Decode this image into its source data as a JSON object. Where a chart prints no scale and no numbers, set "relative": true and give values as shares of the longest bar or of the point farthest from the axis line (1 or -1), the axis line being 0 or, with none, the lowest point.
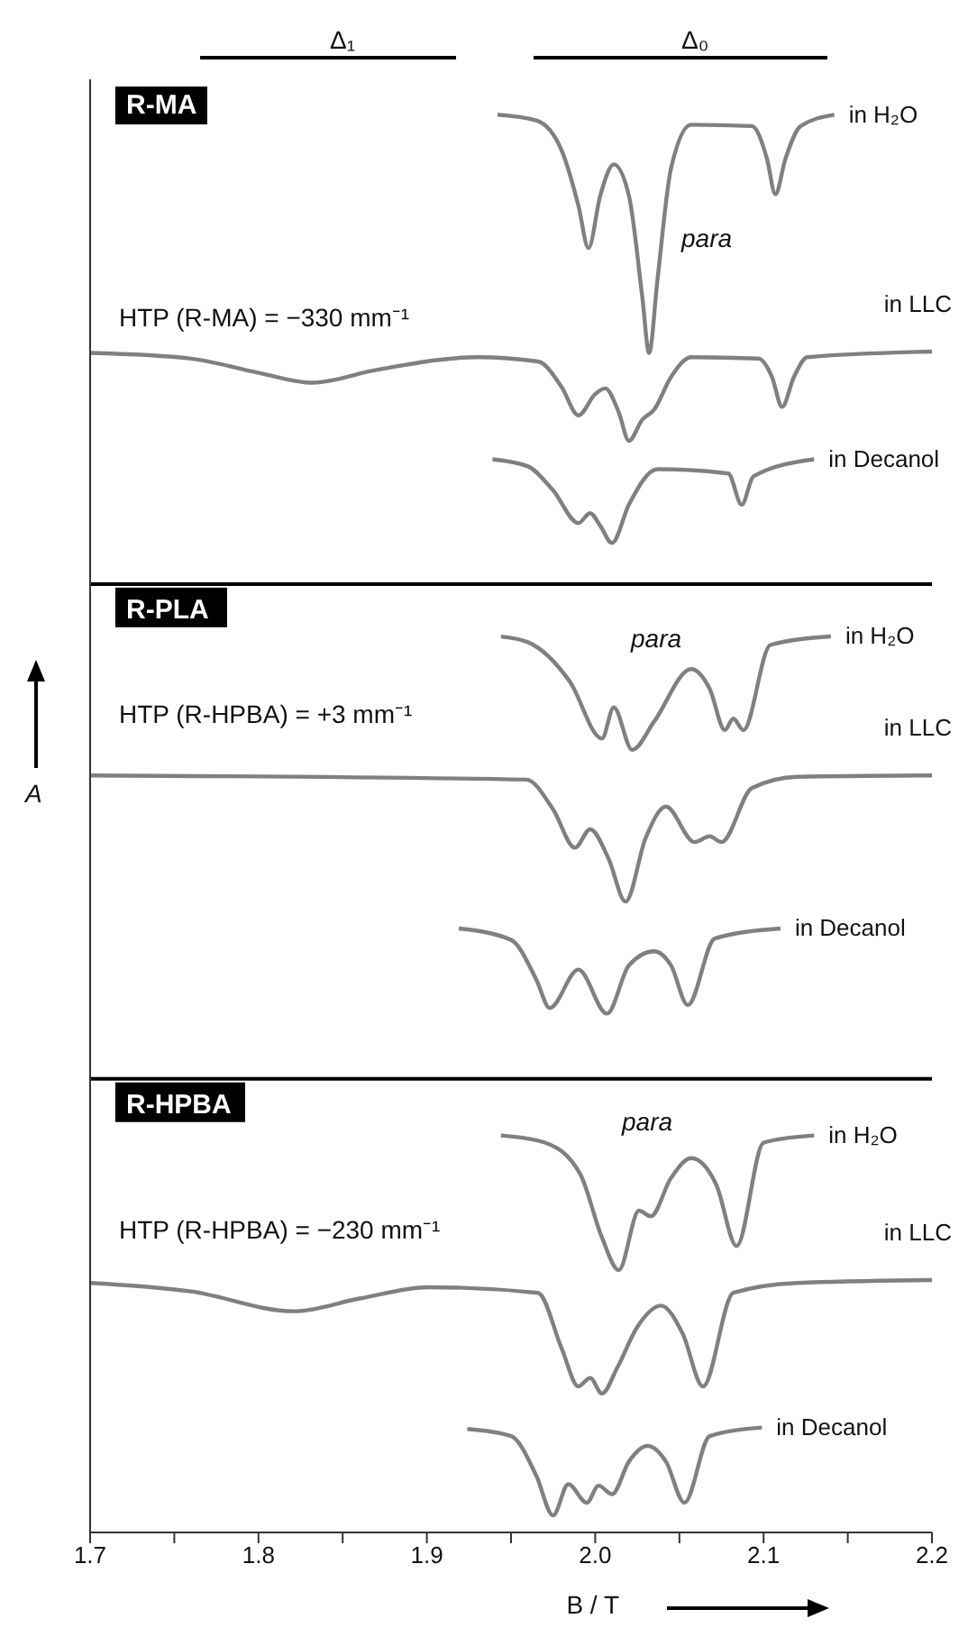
{
  "chart_data": {
    "type": "line",
    "xlabel": "B / T",
    "ylabel": "A",
    "relative": true,
    "marker": "none",
    "xlim": [
      1.7,
      2.2
    ],
    "xticks": [
      1.7,
      {
        "value": 1.75,
        "label": null
      },
      1.8,
      {
        "value": 1.85,
        "label": null
      },
      1.9,
      {
        "value": 1.95,
        "label": null
      },
      {
        "value": 2.0,
        "label": "2.0"
      },
      {
        "value": 2.05,
        "label": null
      },
      2.1,
      {
        "value": 2.15,
        "label": null
      },
      2.2
    ],
    "annotations": [
      "Δ₁",
      "Δ₀",
      "R-MA",
      "para",
      "HTP (R-MA) = −330 mm⁻¹",
      "para",
      "HTP (R-HPBA) = +3 mm⁻¹",
      "para",
      "HTP (R-HPBA) = −230 mm⁻¹"
    ],
    "ref_lines": [
      {
        "axis": "y",
        "value": 0.669,
        "label": "R-PLA",
        "color": "#000000"
      },
      {
        "axis": "y",
        "value": 0.32,
        "label": "R-HPBA",
        "color": "#000000"
      }
    ],
    "series": [
      {
        "name": "in H₂O",
        "color": "#808080",
        "x": [
          1.942,
          1.965,
          1.98,
          1.99,
          1.996,
          2.003,
          2.011,
          2.02,
          2.028,
          2.032,
          2.037,
          2.045,
          2.057,
          2.093,
          2.102,
          2.107,
          2.113,
          2.122,
          2.142
        ],
        "values": [
          1,
          0.996,
          0.975,
          0.936,
          0.906,
          0.943,
          0.965,
          0.943,
          0.871,
          0.832,
          0.884,
          0.962,
          0.993,
          0.992,
          0.969,
          0.944,
          0.969,
          0.992,
          1
        ]
      },
      {
        "name": "in LLC",
        "color": "#808080",
        "x": [
          1.7,
          1.76,
          1.8,
          1.832,
          1.87,
          1.93,
          1.966,
          1.98,
          1.99,
          2.0,
          2.006,
          2.014,
          2.02,
          2.028,
          2.035,
          2.045,
          2.057,
          2.097,
          2.105,
          2.111,
          2.118,
          2.126,
          2.2
        ],
        "values": [
          0.832,
          0.828,
          0.818,
          0.811,
          0.82,
          0.829,
          0.826,
          0.808,
          0.788,
          0.803,
          0.807,
          0.79,
          0.77,
          0.785,
          0.792,
          0.815,
          0.829,
          0.828,
          0.815,
          0.794,
          0.815,
          0.829,
          0.833
        ]
      },
      {
        "name": "in Decanol",
        "color": "#808080",
        "x": [
          1.939,
          1.96,
          1.975,
          1.99,
          1.997,
          2.003,
          2.01,
          2.02,
          2.037,
          2.079,
          2.087,
          2.094,
          2.13
        ],
        "values": [
          0.757,
          0.752,
          0.735,
          0.712,
          0.719,
          0.71,
          0.698,
          0.725,
          0.75,
          0.747,
          0.725,
          0.745,
          0.757
        ]
      },
      {
        "name": "in H₂O",
        "color": "#808080",
        "x": [
          1.944,
          1.96,
          1.985,
          2.004,
          2.011,
          2.022,
          2.035,
          2.057,
          2.068,
          2.077,
          2.082,
          2.088,
          2.104,
          2.14
        ],
        "values": [
          0.632,
          0.628,
          0.6,
          0.56,
          0.582,
          0.552,
          0.572,
          0.609,
          0.595,
          0.566,
          0.574,
          0.566,
          0.626,
          0.632
        ]
      },
      {
        "name": "in LLC",
        "color": "#808080",
        "x": [
          1.7,
          1.959,
          1.975,
          1.988,
          1.997,
          2.008,
          2.018,
          2.03,
          2.042,
          2.059,
          2.068,
          2.075,
          2.093,
          2.12,
          2.2
        ],
        "values": [
          0.534,
          0.531,
          0.51,
          0.483,
          0.496,
          0.475,
          0.445,
          0.49,
          0.512,
          0.487,
          0.491,
          0.487,
          0.525,
          0.533,
          0.534
        ]
      },
      {
        "name": "in Decanol",
        "color": "#808080",
        "x": [
          1.919,
          1.95,
          1.965,
          1.973,
          1.99,
          2.007,
          2.02,
          2.035,
          2.045,
          2.055,
          2.071,
          2.11
        ],
        "values": [
          0.426,
          0.418,
          0.39,
          0.37,
          0.397,
          0.366,
          0.4,
          0.41,
          0.4,
          0.372,
          0.419,
          0.426
        ]
      },
      {
        "name": "in H₂O",
        "color": "#808080",
        "x": [
          1.944,
          1.97,
          1.991,
          2.004,
          2.014,
          2.026,
          2.033,
          2.045,
          2.057,
          2.072,
          2.084,
          2.1,
          2.13
        ],
        "values": [
          0.28,
          0.275,
          0.253,
          0.208,
          0.185,
          0.227,
          0.223,
          0.25,
          0.264,
          0.245,
          0.202,
          0.275,
          0.28
        ]
      },
      {
        "name": "in LLC",
        "color": "#808080",
        "x": [
          1.7,
          1.76,
          1.821,
          1.86,
          1.901,
          1.966,
          1.98,
          1.99,
          1.997,
          2.004,
          2.013,
          2.025,
          2.039,
          2.052,
          2.064,
          2.082,
          2.12,
          2.2
        ],
        "values": [
          0.176,
          0.17,
          0.156,
          0.165,
          0.173,
          0.169,
          0.13,
          0.103,
          0.109,
          0.098,
          0.116,
          0.145,
          0.16,
          0.14,
          0.103,
          0.169,
          0.176,
          0.178
        ]
      },
      {
        "name": "in Decanol",
        "color": "#808080",
        "x": [
          1.924,
          1.95,
          1.965,
          1.975,
          1.984,
          1.995,
          2.002,
          2.01,
          2.02,
          2.031,
          2.042,
          2.053,
          2.068,
          2.099
        ],
        "values": [
          0.073,
          0.068,
          0.04,
          0.012,
          0.034,
          0.021,
          0.033,
          0.027,
          0.05,
          0.061,
          0.05,
          0.021,
          0.068,
          0.074
        ]
      }
    ]
  }
}
